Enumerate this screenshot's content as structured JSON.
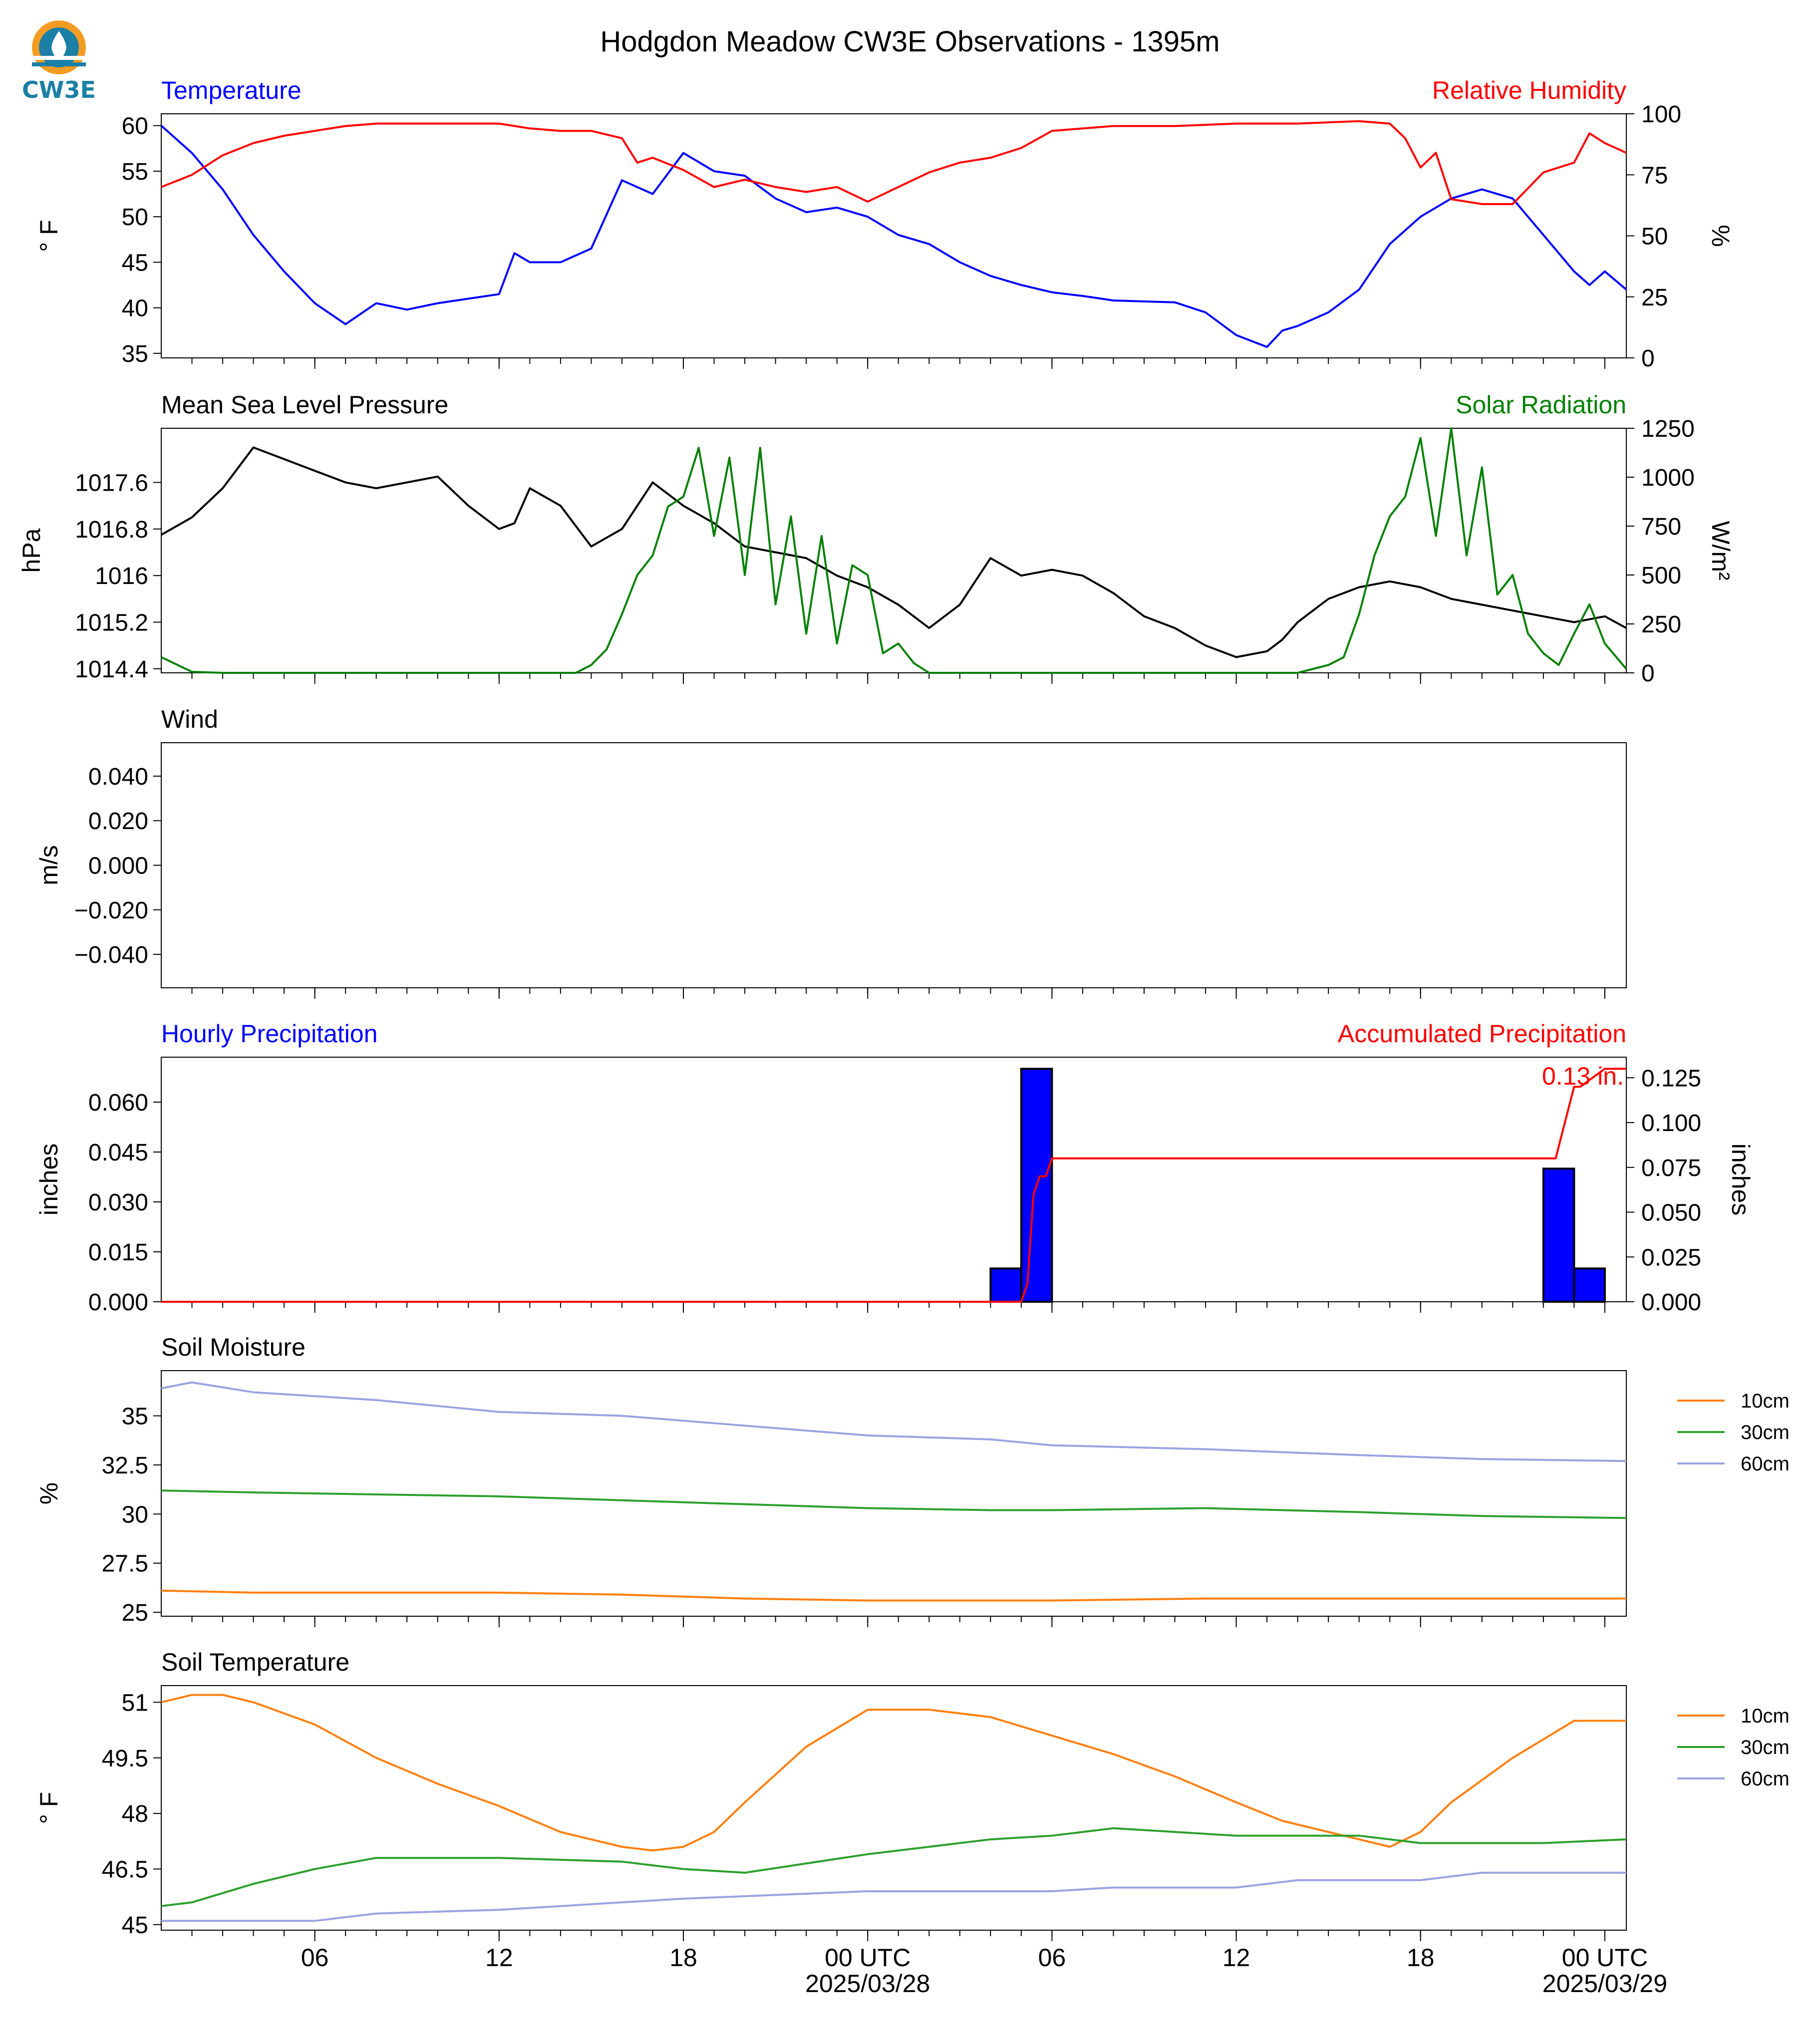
{
  "figure": {
    "title": "Hodgdon Meadow CW3E Observations - 1395m",
    "logo_text": "CW3E",
    "colors": {
      "temperature": "#0000ff",
      "humidity": "#ff0000",
      "pressure": "#000000",
      "solar": "#008000",
      "hourly_precip": "#0000ff",
      "accum_precip": "#ff0000",
      "soil_10cm": "#ff7f0e",
      "soil_30cm": "#2ca02c",
      "soil_60cm": "#9ba3e0"
    }
  },
  "x_axis": {
    "ticks": [
      {
        "t": 6,
        "label": "06",
        "sub": ""
      },
      {
        "t": 12,
        "label": "12",
        "sub": ""
      },
      {
        "t": 18,
        "label": "18",
        "sub": ""
      },
      {
        "t": 24,
        "label": "00 UTC",
        "sub": "2025/03/28"
      },
      {
        "t": 30,
        "label": "06",
        "sub": ""
      },
      {
        "t": 36,
        "label": "12",
        "sub": ""
      },
      {
        "t": 42,
        "label": "18",
        "sub": ""
      },
      {
        "t": 48,
        "label": "00 UTC",
        "sub": "2025/03/29"
      }
    ],
    "xlim_hours": [
      1,
      48.7
    ]
  },
  "chart_data": [
    {
      "type": "line",
      "panel": "temperature_humidity",
      "title_left": "Temperature",
      "title_right": "Relative Humidity",
      "ylabel_left": "° F",
      "ylabel_right": "%",
      "ylim_left": [
        34.5,
        61.3
      ],
      "yticks_left": [
        35,
        40,
        45,
        50,
        55,
        60
      ],
      "ylim_right": [
        0,
        100
      ],
      "yticks_right": [
        0,
        25,
        50,
        75,
        100
      ],
      "series": [
        {
          "name": "Temperature",
          "axis": "left",
          "color": "#0000ff",
          "x": [
            1,
            2,
            3,
            4,
            5,
            6,
            7,
            8,
            9,
            10,
            11,
            12,
            12.5,
            13,
            14,
            15,
            16,
            17,
            18,
            19,
            20,
            21,
            22,
            23,
            24,
            25,
            26,
            27,
            28,
            29,
            30,
            31,
            32,
            33,
            34,
            35,
            36,
            37,
            37.5,
            38,
            39,
            40,
            41,
            42,
            43,
            44,
            45,
            46,
            47,
            47.5,
            48,
            48.7
          ],
          "y": [
            60,
            57,
            53,
            48,
            44,
            40.5,
            38.2,
            40.5,
            39.8,
            40.5,
            41,
            41.5,
            46,
            45,
            45,
            46.5,
            54,
            52.5,
            57,
            55,
            54.5,
            52,
            50.5,
            51,
            50,
            48,
            47,
            45,
            43.5,
            42.5,
            41.7,
            41.3,
            40.8,
            40.7,
            40.6,
            39.5,
            37,
            35.7,
            37.5,
            38,
            39.5,
            42,
            47,
            50,
            52,
            53,
            52,
            48,
            44,
            42.5,
            44,
            42
          ]
        },
        {
          "name": "Relative Humidity",
          "axis": "right",
          "color": "#ff0000",
          "x": [
            1,
            2,
            3,
            4,
            5,
            6,
            7,
            8,
            9,
            10,
            11,
            12,
            13,
            14,
            15,
            16,
            16.5,
            17,
            18,
            19,
            20,
            21,
            22,
            23,
            24,
            25,
            26,
            27,
            28,
            29,
            30,
            32,
            34,
            36,
            38,
            40,
            41,
            41.5,
            42,
            42.5,
            43,
            44,
            45,
            46,
            47,
            47.5,
            48,
            48.7
          ],
          "y": [
            70,
            75,
            83,
            88,
            91,
            93,
            95,
            96,
            96,
            96,
            96,
            96,
            94,
            93,
            93,
            90,
            80,
            82,
            77,
            70,
            73,
            70,
            68,
            70,
            64,
            70,
            76,
            80,
            82,
            86,
            93,
            95,
            95,
            96,
            96,
            97,
            96,
            90,
            78,
            84,
            65,
            63,
            63,
            76,
            80,
            92,
            88,
            84
          ]
        }
      ]
    },
    {
      "type": "line",
      "panel": "pressure_solar",
      "title_left": "Mean Sea Level Pressure",
      "title_right": "Solar Radiation",
      "ylabel_left": "hPa",
      "ylabel_right": "W/m²",
      "ylim_left": [
        1014.33,
        1018.53
      ],
      "yticks_left": [
        1014.4,
        1015.2,
        1016.0,
        1016.8,
        1017.6
      ],
      "ylim_right": [
        0,
        1250
      ],
      "yticks_right": [
        0,
        250,
        500,
        750,
        1000,
        1250
      ],
      "series": [
        {
          "name": "Mean Sea Level Pressure",
          "axis": "left",
          "color": "#000000",
          "x": [
            1,
            2,
            3,
            4,
            5,
            6,
            7,
            8,
            9,
            10,
            11,
            12,
            12.5,
            13,
            14,
            15,
            16,
            17,
            18,
            19,
            20,
            21,
            22,
            23,
            24,
            25,
            26,
            27,
            28,
            29,
            30,
            31,
            32,
            33,
            34,
            35,
            36,
            37,
            37.5,
            38,
            39,
            40,
            41,
            42,
            43,
            44,
            45,
            46,
            47,
            48,
            48.7
          ],
          "y": [
            1016.7,
            1017.0,
            1017.5,
            1018.2,
            1018.0,
            1017.8,
            1017.6,
            1017.5,
            1017.6,
            1017.7,
            1017.2,
            1016.8,
            1016.9,
            1017.5,
            1017.2,
            1016.5,
            1016.8,
            1017.6,
            1017.2,
            1016.9,
            1016.5,
            1016.4,
            1016.3,
            1016.0,
            1015.8,
            1015.5,
            1015.1,
            1015.5,
            1016.3,
            1016.0,
            1016.1,
            1016.0,
            1015.7,
            1015.3,
            1015.1,
            1014.8,
            1014.6,
            1014.7,
            1014.9,
            1015.2,
            1015.6,
            1015.8,
            1015.9,
            1015.8,
            1015.6,
            1015.5,
            1015.4,
            1015.3,
            1015.2,
            1015.3,
            1015.1
          ]
        },
        {
          "name": "Solar Radiation",
          "axis": "right",
          "color": "#008000",
          "x": [
            1,
            2,
            3,
            4,
            5,
            6,
            7,
            8,
            9,
            10,
            11,
            12,
            13,
            14,
            14.5,
            15,
            15.5,
            16,
            16.5,
            17,
            17.5,
            18,
            18.5,
            19,
            19.5,
            20,
            20.5,
            21,
            21.5,
            22,
            22.5,
            23,
            23.5,
            24,
            24.5,
            25,
            25.5,
            26,
            27,
            28,
            29,
            30,
            31,
            32,
            33,
            34,
            35,
            36,
            37,
            38,
            39,
            39.5,
            40,
            40.5,
            41,
            41.5,
            42,
            42.5,
            43,
            43.5,
            44,
            44.5,
            45,
            45.5,
            46,
            46.5,
            47,
            47.5,
            48,
            48.7
          ],
          "y": [
            80,
            5,
            0,
            0,
            0,
            0,
            0,
            0,
            0,
            0,
            0,
            0,
            0,
            0,
            0,
            40,
            120,
            300,
            500,
            600,
            850,
            900,
            1150,
            700,
            1100,
            500,
            1150,
            350,
            800,
            200,
            700,
            150,
            550,
            500,
            100,
            150,
            50,
            0,
            0,
            0,
            0,
            0,
            0,
            0,
            0,
            0,
            0,
            0,
            0,
            0,
            40,
            80,
            300,
            600,
            800,
            900,
            1200,
            700,
            1250,
            600,
            1050,
            400,
            500,
            200,
            100,
            40,
            200,
            350,
            150,
            20
          ]
        }
      ]
    },
    {
      "type": "line",
      "panel": "wind",
      "title_left": "Wind",
      "ylabel_left": "m/s",
      "ylim_left": [
        -0.055,
        0.055
      ],
      "yticks_left": [
        -0.04,
        -0.02,
        0.0,
        0.02,
        0.04
      ],
      "series": []
    },
    {
      "type": "bar",
      "panel": "precipitation",
      "title_left": "Hourly Precipitation",
      "title_right": "Accumulated Precipitation",
      "ylabel_left": "inches",
      "ylabel_right": "inches",
      "ylim_left": [
        0,
        0.0735
      ],
      "yticks_left": [
        0.0,
        0.015,
        0.03,
        0.045,
        0.06
      ],
      "ylim_right": [
        0,
        0.1365
      ],
      "yticks_right": [
        0.0,
        0.025,
        0.05,
        0.075,
        0.1,
        0.125
      ],
      "annotation": "0.13 in.",
      "bars": {
        "name": "Hourly Precipitation",
        "color": "#0000ff",
        "x": [
          28.5,
          29.5,
          46.5,
          47.5
        ],
        "values": [
          0.01,
          0.07,
          0.04,
          0.01
        ]
      },
      "series": [
        {
          "name": "Accumulated Precipitation",
          "axis": "right",
          "color": "#ff0000",
          "x": [
            1,
            29,
            29.2,
            29.4,
            29.6,
            29.8,
            30,
            41.5,
            46.2,
            46.4,
            46.7,
            47,
            47.2,
            48,
            48.7
          ],
          "y": [
            0,
            0,
            0.01,
            0.06,
            0.07,
            0.07,
            0.08,
            0.08,
            0.08,
            0.08,
            0.1,
            0.12,
            0.12,
            0.13,
            0.13
          ]
        }
      ]
    },
    {
      "type": "line",
      "panel": "soil_moisture",
      "title_left": "Soil Moisture",
      "ylabel_left": "%",
      "ylim_left": [
        24.8,
        37.3
      ],
      "yticks_left": [
        25.0,
        27.5,
        30.0,
        32.5,
        35.0
      ],
      "legend": [
        "10cm",
        "30cm",
        "60cm"
      ],
      "series": [
        {
          "name": "10cm",
          "color": "#ff7f0e",
          "x": [
            1,
            4,
            8,
            12,
            16,
            20,
            24,
            28,
            30,
            35,
            40,
            44,
            48.7
          ],
          "y": [
            26.1,
            26,
            26,
            26,
            25.9,
            25.7,
            25.6,
            25.6,
            25.6,
            25.7,
            25.7,
            25.7,
            25.7
          ]
        },
        {
          "name": "30cm",
          "color": "#2ca02c",
          "x": [
            1,
            4,
            8,
            12,
            16,
            20,
            24,
            28,
            30,
            35,
            40,
            44,
            48.7
          ],
          "y": [
            31.2,
            31.1,
            31,
            30.9,
            30.7,
            30.5,
            30.3,
            30.2,
            30.2,
            30.3,
            30.1,
            29.9,
            29.8
          ]
        },
        {
          "name": "60cm",
          "color": "#9ba3e0",
          "x": [
            1,
            2,
            4,
            8,
            12,
            16,
            20,
            24,
            28,
            30,
            35,
            40,
            44,
            48.7
          ],
          "y": [
            36.4,
            36.7,
            36.2,
            35.8,
            35.2,
            35,
            34.5,
            34,
            33.8,
            33.5,
            33.3,
            33,
            32.8,
            32.7
          ]
        }
      ]
    },
    {
      "type": "line",
      "panel": "soil_temperature",
      "title_left": "Soil Temperature",
      "ylabel_left": "° F",
      "ylim_left": [
        44.85,
        51.45
      ],
      "yticks_left": [
        45.0,
        46.5,
        48.0,
        49.5,
        51.0
      ],
      "legend": [
        "10cm",
        "30cm",
        "60cm"
      ],
      "series": [
        {
          "name": "10cm",
          "color": "#ff7f0e",
          "x": [
            1,
            2,
            3,
            4,
            6,
            8,
            10,
            12,
            14,
            16,
            17,
            18,
            19,
            20,
            22,
            24,
            26,
            28,
            30,
            32,
            34,
            36,
            37.5,
            38.5,
            40,
            41,
            42,
            43,
            45,
            46,
            47,
            48,
            48.7
          ],
          "y": [
            51,
            51.2,
            51.2,
            51,
            50.4,
            49.5,
            48.8,
            48.2,
            47.5,
            47.1,
            47,
            47.1,
            47.5,
            48.3,
            49.8,
            50.8,
            50.8,
            50.6,
            50.1,
            49.6,
            49,
            48.3,
            47.8,
            47.6,
            47.3,
            47.1,
            47.5,
            48.3,
            49.5,
            50,
            50.5,
            50.5,
            50.5
          ]
        },
        {
          "name": "30cm",
          "color": "#2ca02c",
          "x": [
            1,
            2,
            4,
            6,
            8,
            12,
            16,
            18,
            20,
            24,
            28,
            30,
            32,
            36,
            40,
            42,
            46,
            48.7
          ],
          "y": [
            45.5,
            45.6,
            46.1,
            46.5,
            46.8,
            46.8,
            46.7,
            46.5,
            46.4,
            46.9,
            47.3,
            47.4,
            47.6,
            47.4,
            47.4,
            47.2,
            47.2,
            47.3
          ]
        },
        {
          "name": "60cm",
          "color": "#9ba3e0",
          "x": [
            1,
            4,
            6,
            8,
            12,
            16,
            18,
            24,
            28,
            30,
            32,
            36,
            38,
            40,
            42,
            44,
            48.7
          ],
          "y": [
            45.1,
            45.1,
            45.1,
            45.3,
            45.4,
            45.6,
            45.7,
            45.9,
            45.9,
            45.9,
            46,
            46,
            46.2,
            46.2,
            46.2,
            46.4,
            46.4
          ]
        }
      ]
    }
  ]
}
